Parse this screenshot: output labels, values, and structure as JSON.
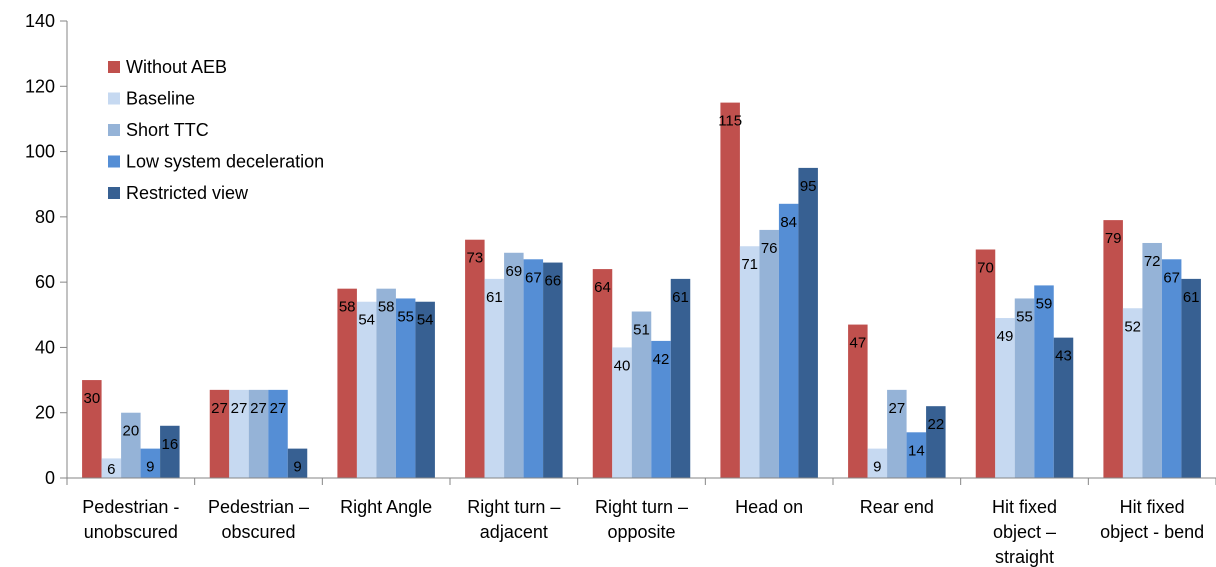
{
  "chart_data": {
    "type": "bar",
    "categories": [
      [
        "Pedestrian -",
        "unobscured"
      ],
      [
        "Pedestrian –",
        "obscured"
      ],
      [
        "Right Angle"
      ],
      [
        "Right turn –",
        "adjacent"
      ],
      [
        "Right turn –",
        "opposite"
      ],
      [
        "Head on"
      ],
      [
        "Rear end"
      ],
      [
        "Hit fixed",
        "object –",
        "straight"
      ],
      [
        "Hit fixed",
        "object - bend"
      ]
    ],
    "series": [
      {
        "name": "Without AEB",
        "color": "#c0504d",
        "values": [
          30,
          27,
          58,
          73,
          64,
          115,
          47,
          70,
          79
        ]
      },
      {
        "name": "Baseline",
        "color": "#c6d9f1",
        "values": [
          6,
          27,
          54,
          61,
          40,
          71,
          9,
          49,
          52
        ]
      },
      {
        "name": "Short TTC",
        "color": "#95b3d7",
        "values": [
          20,
          27,
          58,
          69,
          51,
          76,
          27,
          55,
          72
        ]
      },
      {
        "name": "Low system deceleration",
        "color": "#558ed5",
        "values": [
          9,
          27,
          55,
          67,
          42,
          84,
          14,
          59,
          67
        ]
      },
      {
        "name": "Restricted view",
        "color": "#376092",
        "values": [
          16,
          9,
          54,
          66,
          61,
          95,
          22,
          43,
          61
        ]
      }
    ],
    "data_labels": [
      [
        "30",
        "27",
        "58",
        "73",
        "64",
        "115",
        "47",
        "70",
        "79"
      ],
      [
        "6",
        "27",
        "54",
        "61",
        "40",
        "71",
        "9",
        "49",
        "52"
      ],
      [
        "20",
        "27",
        "58",
        "69",
        "51",
        "76",
        "27",
        "55",
        "72"
      ],
      [
        "9",
        "27",
        "55",
        "67",
        "42",
        "84",
        "14",
        "59",
        "67"
      ],
      [
        "16",
        "9",
        "54",
        "66",
        "61",
        "95",
        "22",
        "43",
        "61"
      ]
    ],
    "y_ticks": [
      "0",
      "20",
      "40",
      "60",
      "80",
      "100",
      "120",
      "140"
    ],
    "ylim": [
      0,
      140
    ],
    "grid": false,
    "legend_position": "top-left"
  }
}
